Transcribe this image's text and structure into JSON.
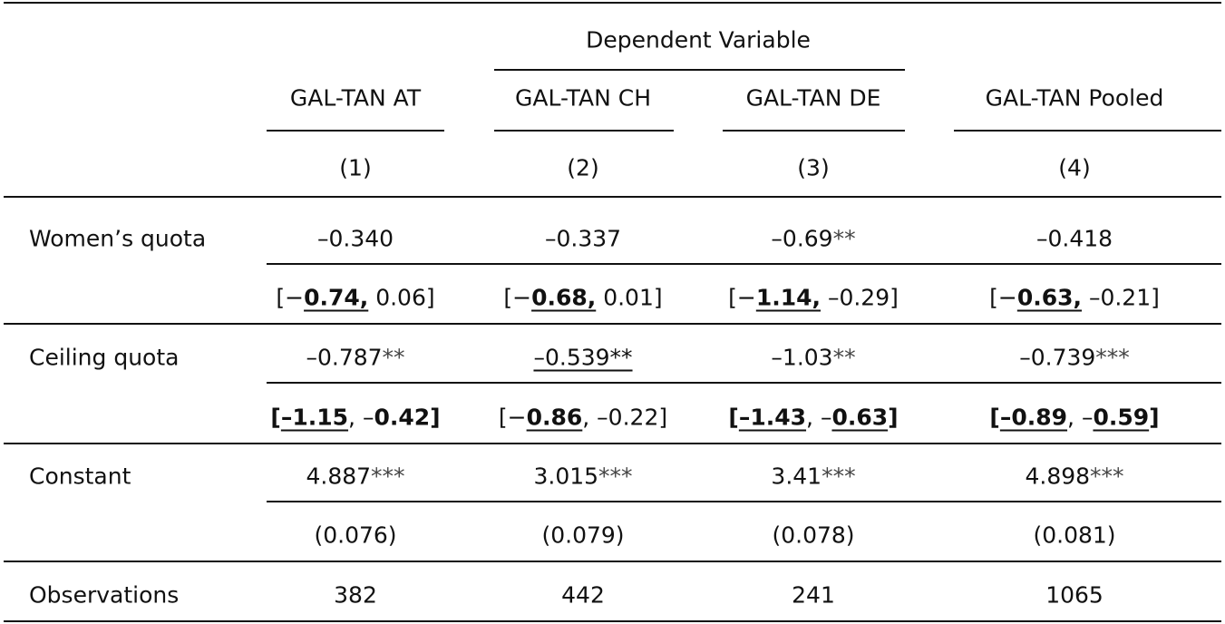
{
  "table": {
    "spanner": "Dependent Variable",
    "columns": [
      "GAL-TAN AT",
      "GAL-TAN CH",
      "GAL-TAN DE",
      "GAL-TAN Pooled"
    ],
    "numbers": [
      "(1)",
      "(2)",
      "(3)",
      "(4)"
    ],
    "rows": [
      {
        "label": "Women’s quota",
        "estimate": [
          [
            {
              "text": "–0.340"
            }
          ],
          [
            {
              "text": "–0.337"
            }
          ],
          [
            {
              "text": "–0.69"
            },
            {
              "text": "**",
              "stars": true
            }
          ],
          [
            {
              "text": "–0.418"
            }
          ]
        ],
        "interval": [
          [
            {
              "text": "[−"
            },
            {
              "text": "0.74,",
              "bold": true,
              "underline": true
            },
            {
              "text": " 0.06]"
            }
          ],
          [
            {
              "text": "[−"
            },
            {
              "text": "0.68,",
              "bold": true,
              "underline": true
            },
            {
              "text": " 0.01]"
            }
          ],
          [
            {
              "text": "[−"
            },
            {
              "text": "1.14,",
              "bold": true,
              "underline": true
            },
            {
              "text": " –0.29]"
            }
          ],
          [
            {
              "text": "[−"
            },
            {
              "text": "0.63,",
              "bold": true,
              "underline": true
            },
            {
              "text": " –0.21]"
            }
          ]
        ]
      },
      {
        "label": "Ceiling quota",
        "estimate": [
          [
            {
              "text": "–0.787"
            },
            {
              "text": "**",
              "stars": true
            }
          ],
          [
            {
              "text": "–0.539**",
              "underline": true
            }
          ],
          [
            {
              "text": "–1.03"
            },
            {
              "text": "**",
              "stars": true
            }
          ],
          [
            {
              "text": "–0.739"
            },
            {
              "text": "***",
              "stars": true
            }
          ]
        ],
        "interval": [
          [
            {
              "text": "[",
              "bold": true
            },
            {
              "text": "–1.15",
              "bold": true,
              "underline": true
            },
            {
              "text": ", –"
            },
            {
              "text": "0.42",
              "bold": true
            },
            {
              "text": "]",
              "bold": true
            }
          ],
          [
            {
              "text": "[−"
            },
            {
              "text": "0.86",
              "bold": true,
              "underline": true
            },
            {
              "text": ", –0.22]"
            }
          ],
          [
            {
              "text": "[",
              "bold": true
            },
            {
              "text": "–1.43",
              "bold": true,
              "underline": true
            },
            {
              "text": ", –"
            },
            {
              "text": "0.63",
              "bold": true,
              "underline": true
            },
            {
              "text": "]",
              "bold": true
            }
          ],
          [
            {
              "text": "[",
              "bold": true
            },
            {
              "text": "–0.89",
              "bold": true,
              "underline": true
            },
            {
              "text": ", –"
            },
            {
              "text": "0.59",
              "bold": true,
              "underline": true
            },
            {
              "text": "]",
              "bold": true
            }
          ]
        ]
      },
      {
        "label": "Constant",
        "estimate": [
          [
            {
              "text": "4.887"
            },
            {
              "text": "***",
              "stars": true
            }
          ],
          [
            {
              "text": "3.015"
            },
            {
              "text": "***",
              "stars": true
            }
          ],
          [
            {
              "text": "3.41"
            },
            {
              "text": "***",
              "stars": true
            }
          ],
          [
            {
              "text": "4.898"
            },
            {
              "text": "***",
              "stars": true
            }
          ]
        ],
        "interval": [
          [
            {
              "text": "(0.076)"
            }
          ],
          [
            {
              "text": "(0.079)"
            }
          ],
          [
            {
              "text": "(0.078)"
            }
          ],
          [
            {
              "text": "(0.081)"
            }
          ]
        ]
      }
    ],
    "observations": {
      "label": "Observations",
      "values": [
        "382",
        "442",
        "241",
        "1065"
      ]
    }
  }
}
